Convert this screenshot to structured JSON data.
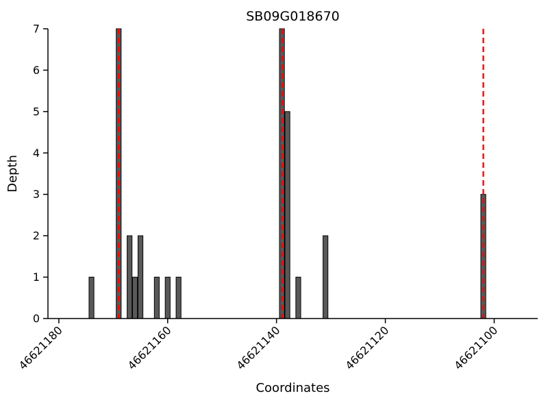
{
  "chart_data": {
    "type": "bar",
    "title": "SB09G018670",
    "xlabel": "Coordinates",
    "ylabel": "Depth",
    "x_reversed": true,
    "x_domain": [
      46621182,
      46621092
    ],
    "x_ticks": [
      46621180,
      46621160,
      46621140,
      46621120,
      46621100
    ],
    "y_ticks": [
      0,
      1,
      2,
      3,
      4,
      5,
      6,
      7
    ],
    "ylim": [
      0,
      7
    ],
    "bar_width": 0.9,
    "bars": [
      {
        "coordinate": 46621174,
        "depth": 1
      },
      {
        "coordinate": 46621169,
        "depth": 7
      },
      {
        "coordinate": 46621167,
        "depth": 2
      },
      {
        "coordinate": 46621166,
        "depth": 1
      },
      {
        "coordinate": 46621165,
        "depth": 2
      },
      {
        "coordinate": 46621162,
        "depth": 1
      },
      {
        "coordinate": 46621160,
        "depth": 1
      },
      {
        "coordinate": 46621158,
        "depth": 1
      },
      {
        "coordinate": 46621139,
        "depth": 7
      },
      {
        "coordinate": 46621138,
        "depth": 5
      },
      {
        "coordinate": 46621136,
        "depth": 1
      },
      {
        "coordinate": 46621131,
        "depth": 2
      },
      {
        "coordinate": 46621102,
        "depth": 3
      }
    ],
    "marker_lines": [
      {
        "coordinate": 46621169,
        "style": "dashed",
        "color": "#ff0000"
      },
      {
        "coordinate": 46621139,
        "style": "dashed",
        "color": "#ff0000"
      },
      {
        "coordinate": 46621102,
        "style": "dashed",
        "color": "#ff0000"
      }
    ],
    "colors": {
      "bar_fill": "#595959",
      "bar_edge": "#000000",
      "marker": "#ff0000",
      "axis": "#000000",
      "background": "#ffffff"
    }
  }
}
